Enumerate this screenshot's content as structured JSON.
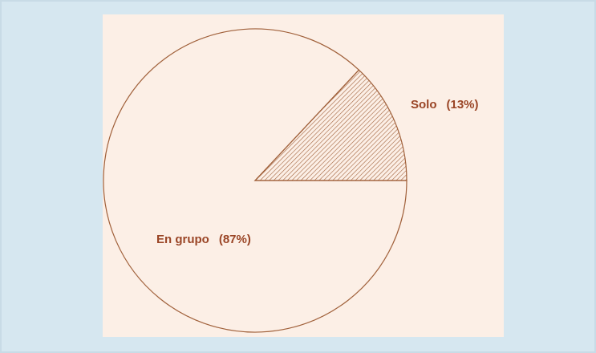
{
  "chart_data": {
    "type": "pie",
    "categories": [
      "Solo",
      "En grupo"
    ],
    "values": [
      13,
      87
    ],
    "value_labels": [
      "(13%)",
      "(87%)"
    ],
    "fills": [
      "hatch",
      "none"
    ],
    "color": "#a0603a"
  }
}
